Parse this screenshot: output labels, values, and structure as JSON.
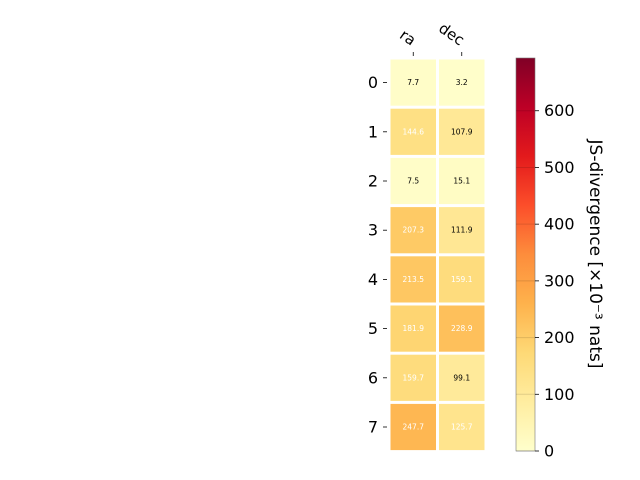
{
  "chart_data": {
    "type": "heatmap",
    "columns": [
      "ra",
      "dec"
    ],
    "rows": [
      "0",
      "1",
      "2",
      "3",
      "4",
      "5",
      "6",
      "7"
    ],
    "values": [
      [
        7.7,
        3.2
      ],
      [
        144.6,
        107.9
      ],
      [
        7.5,
        15.1
      ],
      [
        207.3,
        111.9
      ],
      [
        213.5,
        159.1
      ],
      [
        181.9,
        228.9
      ],
      [
        159.7,
        99.1
      ],
      [
        247.7,
        125.7
      ]
    ],
    "colorbar": {
      "label": "JS-divergence [×10⁻³ nats]",
      "min": 0,
      "max": 693,
      "ticks": [
        0,
        100,
        200,
        300,
        400,
        500,
        600
      ],
      "colormap": "YlOrRd"
    },
    "label_color_threshold": 125
  }
}
